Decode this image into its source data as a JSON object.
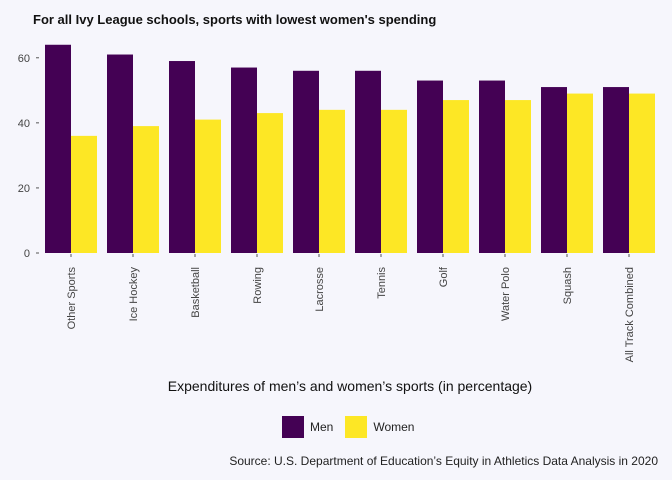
{
  "chart_data": {
    "type": "bar",
    "title": "For all Ivy League schools, sports with lowest women's spending",
    "xlabel": "Expenditures of men’s and women’s sports (in percentage)",
    "ylabel": "",
    "caption": "Source: U.S. Department of Education’s Equity in Athletics Data Analysis in 2020",
    "categories": [
      "Other Sports",
      "Ice Hockey",
      "Basketball",
      "Rowing",
      "Lacrosse",
      "Tennis",
      "Golf",
      "Water Polo",
      "Squash",
      "All Track Combined"
    ],
    "series": [
      {
        "name": "Men",
        "color": "#440154",
        "values": [
          64,
          61,
          59,
          57,
          56,
          56,
          53,
          53,
          51,
          51
        ]
      },
      {
        "name": "Women",
        "color": "#fde725",
        "values": [
          36,
          39,
          41,
          43,
          44,
          44,
          47,
          47,
          49,
          49
        ]
      }
    ],
    "ylim": [
      0,
      67
    ],
    "yticks": [
      0,
      20,
      40,
      60
    ],
    "grid": false,
    "legend_position": "bottom"
  }
}
